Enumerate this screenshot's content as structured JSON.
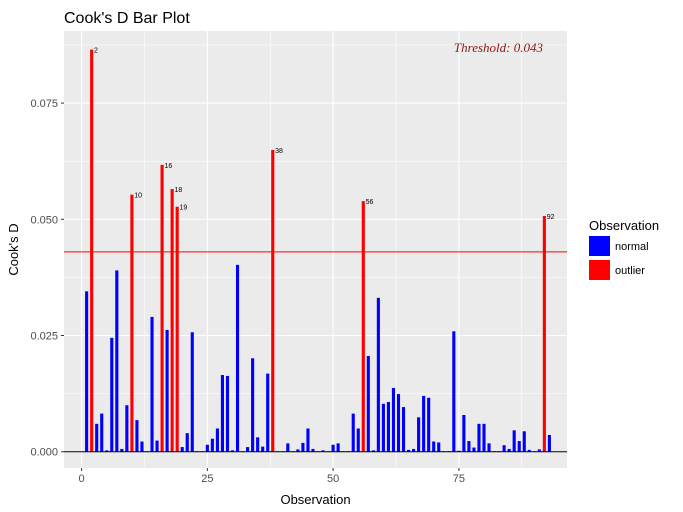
{
  "chart_data": {
    "type": "bar",
    "title": "Cook's D Bar Plot",
    "xlabel": "Observation",
    "ylabel": "Cook's D",
    "xlim": [
      -3.5,
      96.5
    ],
    "ylim": [
      -0.0035,
      0.0905
    ],
    "x_ticks": [
      0,
      25,
      50,
      75
    ],
    "x_tick_labels": [
      "0",
      "25",
      "50",
      "75"
    ],
    "y_ticks": [
      0,
      0.025,
      0.05,
      0.075
    ],
    "y_tick_labels": [
      "0.000",
      "0.025",
      "0.050",
      "0.075"
    ],
    "grid": true,
    "threshold": 0.043,
    "threshold_label": "Threshold: 0.043",
    "legend": {
      "title": "Observation",
      "placement": "right",
      "entries": [
        {
          "name": "normal",
          "color": "#0000ff"
        },
        {
          "name": "outlier",
          "color": "#ff0000"
        }
      ]
    },
    "colors": {
      "normal": "#0000ff",
      "outlier": "#ff0000",
      "threshold": "#ff0000",
      "panel": "#ebebeb"
    },
    "observations": [
      1,
      2,
      3,
      4,
      5,
      6,
      7,
      8,
      9,
      10,
      11,
      12,
      13,
      14,
      15,
      16,
      17,
      18,
      19,
      20,
      21,
      22,
      23,
      24,
      25,
      26,
      27,
      28,
      29,
      30,
      31,
      32,
      33,
      34,
      35,
      36,
      37,
      38,
      39,
      40,
      41,
      42,
      43,
      44,
      45,
      46,
      47,
      48,
      49,
      50,
      51,
      52,
      53,
      54,
      55,
      56,
      57,
      58,
      59,
      60,
      61,
      62,
      63,
      64,
      65,
      66,
      67,
      68,
      69,
      70,
      71,
      72,
      73,
      74,
      75,
      76,
      77,
      78,
      79,
      80,
      81,
      82,
      83,
      84,
      85,
      86,
      87,
      88,
      89,
      90,
      91,
      92,
      93
    ],
    "values": [
      0.0345,
      0.0865,
      0.006,
      0.0082,
      0.0003,
      0.0245,
      0.039,
      0.0006,
      0.01,
      0.0553,
      0.0068,
      0.0022,
      0.0001,
      0.029,
      0.0024,
      0.0617,
      0.0262,
      0.0565,
      0.0527,
      0.001,
      0.004,
      0.0257,
      0.0001,
      0.0001,
      0.0015,
      0.0028,
      0.005,
      0.0165,
      0.0163,
      0.0003,
      0.0402,
      0.0001,
      0.001,
      0.0201,
      0.0031,
      0.0011,
      0.0168,
      0.0649,
      0.0001,
      0.0001,
      0.0018,
      0.0001,
      0.0005,
      0.0019,
      0.005,
      0.0006,
      0.0001,
      0.0003,
      0.0001,
      0.0015,
      0.0018,
      0.0001,
      0.0001,
      0.0082,
      0.005,
      0.0539,
      0.0206,
      0.0003,
      0.0331,
      0.0103,
      0.0107,
      0.0137,
      0.0124,
      0.0096,
      0.0004,
      0.0006,
      0.0074,
      0.012,
      0.0116,
      0.0022,
      0.002,
      0.0001,
      0.0001,
      0.0259,
      0.0002,
      0.0079,
      0.0023,
      0.0009,
      0.006,
      0.006,
      0.0018,
      0.0001,
      0.0001,
      0.0014,
      0.0006,
      0.0046,
      0.0023,
      0.0044,
      0.0004,
      0.0001,
      0.0005,
      0.0507,
      0.0036
    ],
    "outlier_labels": [
      "2",
      "10",
      "16",
      "18",
      "19",
      "38",
      "56",
      "92"
    ]
  }
}
